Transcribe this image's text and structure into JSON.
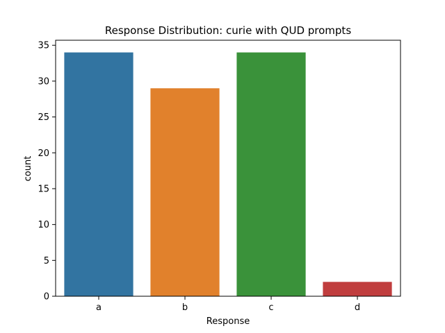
{
  "chart_data": {
    "type": "bar",
    "title": "Response Distribution: curie with QUD prompts",
    "xlabel": "Response",
    "ylabel": "count",
    "categories": [
      "a",
      "b",
      "c",
      "d"
    ],
    "values": [
      34,
      29,
      34,
      2
    ],
    "colors": [
      "#3274a1",
      "#e1812c",
      "#3a923a",
      "#c03d3e"
    ],
    "ylim": [
      0,
      35.7
    ],
    "yticks": [
      0,
      5,
      10,
      15,
      20,
      25,
      30,
      35
    ],
    "grid": false,
    "legend": "none"
  }
}
